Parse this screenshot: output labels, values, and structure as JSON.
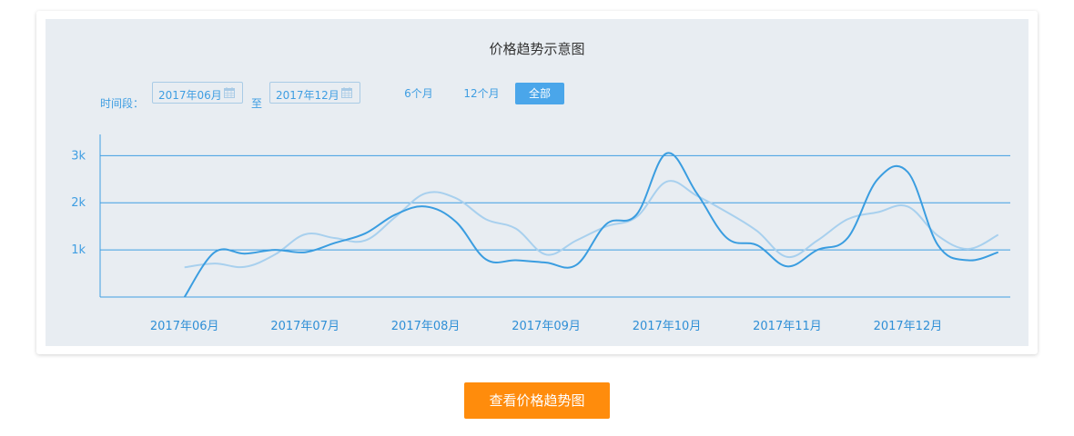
{
  "title": "价格趋势示意图",
  "range": {
    "label": "时间段：",
    "start": "2017年06月",
    "separator": "至",
    "end": "2017年12月",
    "calendar_icon": "calendar-icon"
  },
  "quick": {
    "six": "6个月",
    "twelve": "12个月",
    "all": "全部"
  },
  "action_button": "查看价格趋势图",
  "colors": {
    "accent": "#3f9ee2",
    "series_dark": "#3a9de0",
    "series_light": "#a8d0ee",
    "button": "#ff8c0c",
    "panel": "#e8edf2"
  },
  "chart_data": {
    "type": "line",
    "title": "价格趋势示意图",
    "x": [
      0,
      0.25,
      0.5,
      0.75,
      1,
      1.25,
      1.5,
      1.75,
      2,
      2.25,
      2.5,
      2.75,
      3,
      3.25,
      3.5,
      3.75,
      4,
      4.25,
      4.5,
      4.75,
      5,
      5.25,
      5.5,
      5.75,
      6,
      6.25,
      6.5,
      6.75
    ],
    "x_ticks": [
      "2017年06月",
      "2017年07月",
      "2017年08月",
      "2017年09月",
      "2017年10月",
      "2017年11月",
      "2017年12月"
    ],
    "y_ticks": [
      "1k",
      "2k",
      "3k"
    ],
    "y_tick_values": [
      1000,
      2000,
      3000
    ],
    "ylim": [
      0,
      3450
    ],
    "xlim": [
      -0.7,
      6.85
    ],
    "grid": true,
    "series": [
      {
        "color": "#a8d0ee",
        "values": [
          630,
          710,
          640,
          900,
          1330,
          1250,
          1200,
          1700,
          2200,
          2100,
          1650,
          1450,
          900,
          1200,
          1500,
          1700,
          2450,
          2150,
          1800,
          1400,
          850,
          1200,
          1650,
          1800,
          1920,
          1300,
          1020,
          1320
        ]
      },
      {
        "color": "#3a9de0",
        "values": [
          0,
          950,
          920,
          1000,
          950,
          1150,
          1350,
          1750,
          1920,
          1600,
          800,
          780,
          730,
          680,
          1550,
          1750,
          3050,
          2200,
          1250,
          1100,
          650,
          1000,
          1250,
          2500,
          2650,
          1100,
          780,
          950
        ]
      }
    ]
  }
}
